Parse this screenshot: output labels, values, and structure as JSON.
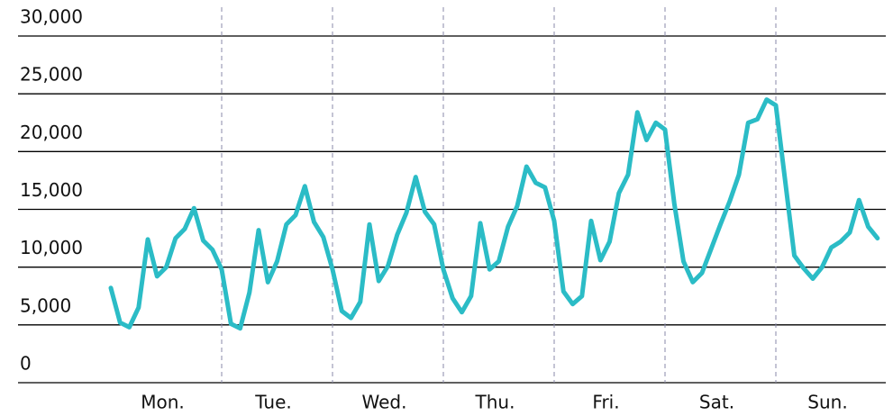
{
  "chart_data": {
    "type": "line",
    "categories": [
      "Mon.",
      "Tue.",
      "Wed.",
      "Thu.",
      "Fri.",
      "Sat.",
      "Sun."
    ],
    "values": [
      [
        8200,
        5200,
        4800,
        6500,
        12400,
        9200,
        10000,
        12500,
        13300,
        15100,
        12300,
        11500
      ],
      [
        9800,
        5100,
        4700,
        7800,
        13200,
        8700,
        10500,
        13700,
        14500,
        17000,
        13900,
        12600
      ],
      [
        9800,
        6200,
        5600,
        7000,
        13700,
        8800,
        10100,
        12800,
        14700,
        17800,
        14800,
        13700
      ],
      [
        9800,
        7300,
        6100,
        7500,
        13800,
        9800,
        10500,
        13500,
        15300,
        18700,
        17300,
        16900
      ],
      [
        14000,
        7900,
        6800,
        7500,
        14000,
        10600,
        12200,
        16400,
        18000,
        23400,
        21000,
        22500
      ],
      [
        21900,
        15500,
        10500,
        8700,
        9500,
        11600,
        13700,
        15700,
        18000,
        22500,
        22800,
        24500
      ],
      [
        24000,
        17500,
        11000,
        9900,
        9000,
        10000,
        11700,
        12200,
        13000,
        15800,
        13500,
        12500
      ]
    ],
    "color": "#2bbcc6",
    "ylim": [
      0,
      30000
    ],
    "yticks": [
      0,
      {
        "value": 5000,
        "label": "5,000"
      },
      {
        "value": 10000,
        "label": "10,000"
      },
      {
        "value": 15000,
        "label": "15,000"
      },
      {
        "value": 20000,
        "label": "20,000"
      },
      {
        "value": 25000,
        "label": "25,000"
      },
      {
        "value": 30000,
        "label": "30,000"
      }
    ],
    "grid": true
  }
}
